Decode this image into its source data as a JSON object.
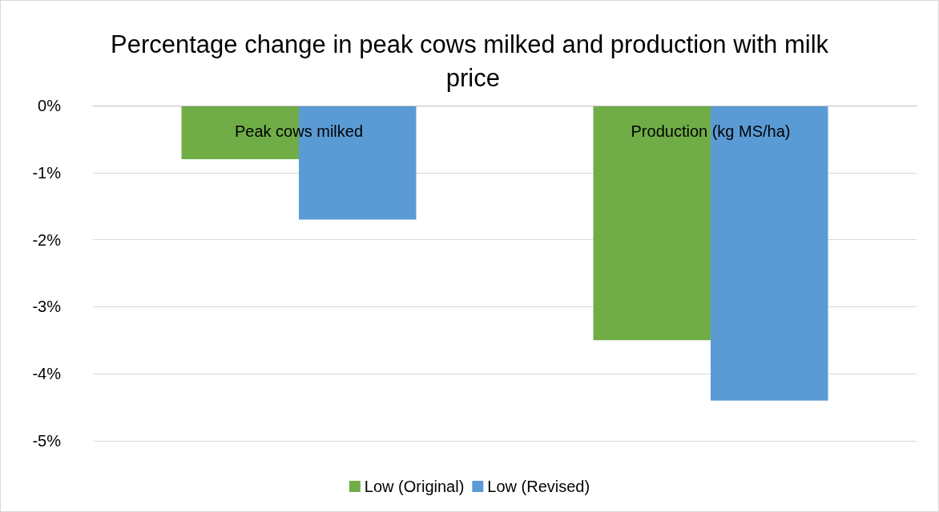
{
  "chart_data": {
    "type": "bar",
    "title": "Percentage change in peak cows milked and production with milk price",
    "categories": [
      "Peak cows milked",
      "Production (kg MS/ha)"
    ],
    "series": [
      {
        "name": "Low (Original)",
        "color": "#70ad47",
        "values": [
          -0.8,
          -3.5
        ]
      },
      {
        "name": "Low (Revised)",
        "color": "#5b9bd5",
        "values": [
          -1.7,
          -4.4
        ]
      }
    ],
    "ylim": [
      -5,
      0
    ],
    "yticks": [
      {
        "value": -5,
        "label": "-5%"
      },
      {
        "value": -4,
        "label": "-4%"
      },
      {
        "value": -3,
        "label": "-3%"
      },
      {
        "value": -2,
        "label": "-2%"
      },
      {
        "value": -1,
        "label": "-1%"
      },
      {
        "value": 0,
        "label": "0%"
      }
    ],
    "grid": "y",
    "legend": "bottom"
  }
}
